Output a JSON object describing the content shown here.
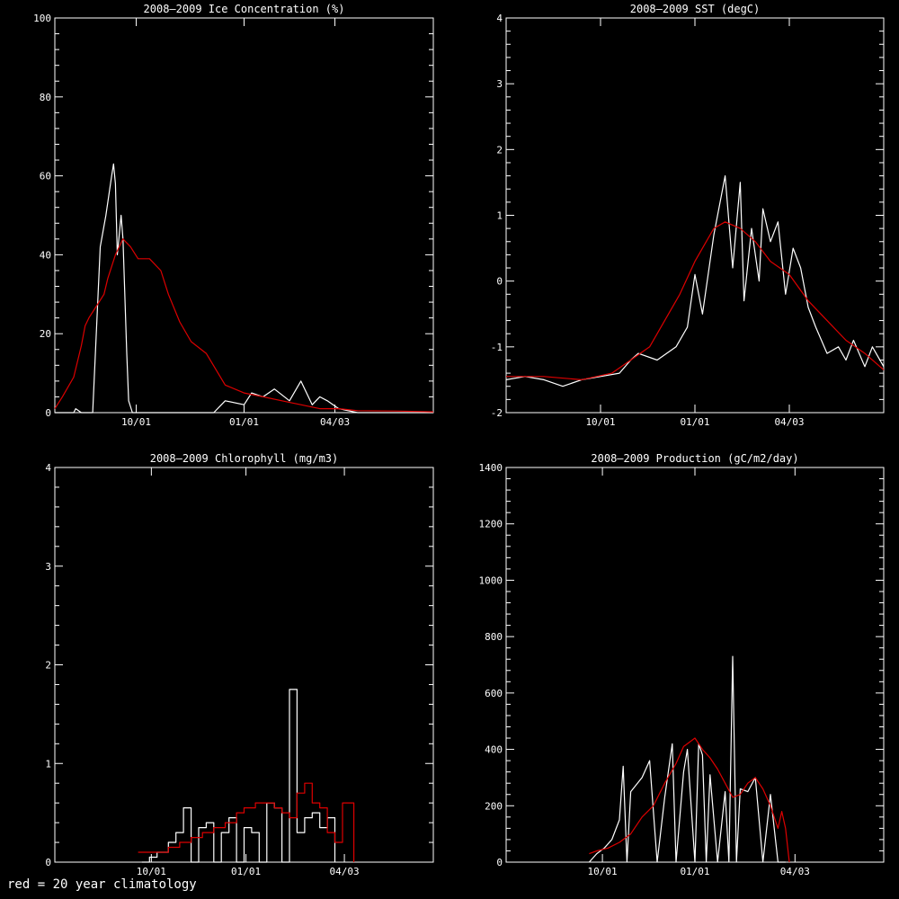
{
  "footer_note": "red = 20 year climatology",
  "colors": {
    "observed": "#ffffff",
    "climatology": "#dd0000",
    "axes": "#ffffff",
    "background": "#000000"
  },
  "chart_data": [
    {
      "type": "line",
      "title": "2008–2009 Ice Concentration (%)",
      "ylim": [
        0,
        100
      ],
      "yticks": [
        0,
        20,
        40,
        60,
        80,
        100
      ],
      "xlim": [
        0,
        1
      ],
      "xticks": [
        {
          "x": 0.215,
          "label": "10/01"
        },
        {
          "x": 0.5,
          "label": "01/01"
        },
        {
          "x": 0.74,
          "label": "04/03"
        }
      ],
      "series": [
        {
          "color": "observed",
          "step": false,
          "x": [
            0.0,
            0.05,
            0.055,
            0.07,
            0.085,
            0.1,
            0.12,
            0.135,
            0.15,
            0.155,
            0.16,
            0.165,
            0.175,
            0.18,
            0.19,
            0.195,
            0.205,
            0.22,
            0.3,
            0.36,
            0.42,
            0.45,
            0.5,
            0.52,
            0.55,
            0.58,
            0.62,
            0.65,
            0.68,
            0.7,
            0.72,
            0.75,
            0.8,
            1.0
          ],
          "y": [
            0,
            0,
            1,
            0,
            0,
            0,
            42,
            50,
            60,
            63,
            58,
            40,
            50,
            44,
            15,
            3,
            0,
            0,
            0,
            0,
            0,
            3,
            2,
            5,
            4,
            6,
            3,
            8,
            2,
            4,
            3,
            1,
            0,
            0
          ]
        },
        {
          "color": "climatology",
          "step": false,
          "x": [
            0.0,
            0.02,
            0.05,
            0.07,
            0.08,
            0.09,
            0.11,
            0.13,
            0.14,
            0.16,
            0.18,
            0.2,
            0.22,
            0.25,
            0.28,
            0.3,
            0.33,
            0.36,
            0.4,
            0.45,
            0.5,
            0.55,
            0.6,
            0.65,
            0.7,
            0.75,
            0.8,
            0.9,
            1.0
          ],
          "y": [
            1,
            4,
            9,
            17,
            22,
            24,
            27,
            30,
            34,
            40,
            44,
            42,
            39,
            39,
            36,
            30,
            23,
            18,
            15,
            7,
            5,
            4,
            3,
            2,
            1,
            1,
            0.5,
            0.4,
            0.2
          ]
        }
      ]
    },
    {
      "type": "line",
      "title": "2008–2009 SST (degC)",
      "ylim": [
        -2,
        4
      ],
      "yticks": [
        -2,
        -1,
        0,
        1,
        2,
        3,
        4
      ],
      "xlim": [
        0,
        1
      ],
      "xticks": [
        {
          "x": 0.25,
          "label": "10/01"
        },
        {
          "x": 0.5,
          "label": "01/01"
        },
        {
          "x": 0.75,
          "label": "04/03"
        }
      ],
      "series": [
        {
          "color": "observed",
          "step": false,
          "x": [
            0.0,
            0.05,
            0.1,
            0.15,
            0.2,
            0.25,
            0.3,
            0.33,
            0.35,
            0.4,
            0.45,
            0.48,
            0.5,
            0.52,
            0.55,
            0.58,
            0.6,
            0.62,
            0.63,
            0.65,
            0.67,
            0.68,
            0.7,
            0.72,
            0.74,
            0.76,
            0.78,
            0.8,
            0.82,
            0.85,
            0.88,
            0.9,
            0.92,
            0.95,
            0.97,
            1.0
          ],
          "y": [
            -1.5,
            -1.45,
            -1.5,
            -1.6,
            -1.5,
            -1.45,
            -1.4,
            -1.2,
            -1.1,
            -1.2,
            -1.0,
            -0.7,
            0.1,
            -0.5,
            0.7,
            1.6,
            0.2,
            1.5,
            -0.3,
            0.8,
            0.0,
            1.1,
            0.6,
            0.9,
            -0.2,
            0.5,
            0.2,
            -0.4,
            -0.7,
            -1.1,
            -1.0,
            -1.2,
            -0.9,
            -1.3,
            -1.0,
            -1.3
          ]
        },
        {
          "color": "climatology",
          "step": false,
          "x": [
            0.0,
            0.1,
            0.2,
            0.28,
            0.33,
            0.38,
            0.42,
            0.46,
            0.5,
            0.55,
            0.58,
            0.62,
            0.66,
            0.7,
            0.75,
            0.8,
            0.85,
            0.9,
            0.95,
            1.0
          ],
          "y": [
            -1.45,
            -1.45,
            -1.5,
            -1.4,
            -1.2,
            -1.0,
            -0.6,
            -0.2,
            0.3,
            0.8,
            0.9,
            0.8,
            0.6,
            0.3,
            0.1,
            -0.3,
            -0.6,
            -0.9,
            -1.1,
            -1.35
          ]
        }
      ]
    },
    {
      "type": "line",
      "title": "2008–2009 Chlorophyll (mg/m3)",
      "ylim": [
        0,
        4
      ],
      "yticks": [
        0,
        1,
        2,
        3,
        4
      ],
      "xlim": [
        0,
        1
      ],
      "xticks": [
        {
          "x": 0.255,
          "label": "10/01"
        },
        {
          "x": 0.505,
          "label": "01/01"
        },
        {
          "x": 0.765,
          "label": "04/03"
        }
      ],
      "series": [
        {
          "color": "observed",
          "step": true,
          "x": [
            0.23,
            0.25,
            0.27,
            0.3,
            0.32,
            0.34,
            0.36,
            0.38,
            0.4,
            0.42,
            0.44,
            0.46,
            0.48,
            0.5,
            0.52,
            0.54,
            0.56,
            0.58,
            0.6,
            0.62,
            0.64,
            0.66,
            0.68,
            0.7,
            0.72,
            0.74
          ],
          "y": [
            0,
            0.05,
            0.1,
            0.2,
            0.3,
            0.55,
            0,
            0.35,
            0.4,
            0,
            0.3,
            0.45,
            0,
            0.35,
            0.3,
            0,
            0.6,
            0.55,
            0,
            1.75,
            0.3,
            0.45,
            0.5,
            0.35,
            0.45,
            0
          ]
        },
        {
          "color": "climatology",
          "step": true,
          "x": [
            0.22,
            0.24,
            0.27,
            0.3,
            0.33,
            0.36,
            0.39,
            0.42,
            0.45,
            0.48,
            0.5,
            0.53,
            0.56,
            0.58,
            0.6,
            0.62,
            0.64,
            0.66,
            0.68,
            0.7,
            0.72,
            0.74,
            0.76,
            0.78,
            0.79
          ],
          "y": [
            0.1,
            0.1,
            0.1,
            0.15,
            0.2,
            0.25,
            0.3,
            0.35,
            0.4,
            0.5,
            0.55,
            0.6,
            0.6,
            0.55,
            0.5,
            0.45,
            0.7,
            0.8,
            0.6,
            0.55,
            0.3,
            0.2,
            0.6,
            0.6,
            0
          ]
        }
      ]
    },
    {
      "type": "line",
      "title": "2008–2009 Production (gC/m2/day)",
      "ylim": [
        0,
        1400
      ],
      "yticks": [
        0,
        200,
        400,
        600,
        800,
        1000,
        1200,
        1400
      ],
      "xlim": [
        0,
        1
      ],
      "xticks": [
        {
          "x": 0.255,
          "label": "10/01"
        },
        {
          "x": 0.5,
          "label": "01/01"
        },
        {
          "x": 0.765,
          "label": "04/03"
        }
      ],
      "series": [
        {
          "color": "observed",
          "step": false,
          "x": [
            0.22,
            0.24,
            0.26,
            0.28,
            0.3,
            0.31,
            0.32,
            0.33,
            0.36,
            0.38,
            0.4,
            0.42,
            0.44,
            0.45,
            0.47,
            0.48,
            0.5,
            0.51,
            0.52,
            0.53,
            0.54,
            0.56,
            0.58,
            0.59,
            0.6,
            0.61,
            0.62,
            0.64,
            0.66,
            0.68,
            0.7,
            0.72,
            0.74
          ],
          "y": [
            0,
            30,
            50,
            80,
            150,
            340,
            0,
            250,
            300,
            360,
            0,
            230,
            420,
            0,
            320,
            400,
            0,
            420,
            380,
            0,
            310,
            0,
            250,
            0,
            730,
            0,
            260,
            250,
            300,
            0,
            240,
            0,
            0
          ]
        },
        {
          "color": "climatology",
          "step": false,
          "x": [
            0.22,
            0.24,
            0.27,
            0.3,
            0.33,
            0.36,
            0.39,
            0.42,
            0.45,
            0.47,
            0.5,
            0.52,
            0.54,
            0.56,
            0.58,
            0.6,
            0.62,
            0.64,
            0.66,
            0.68,
            0.7,
            0.72,
            0.73,
            0.74,
            0.75
          ],
          "y": [
            30,
            40,
            50,
            70,
            100,
            160,
            200,
            280,
            350,
            410,
            440,
            400,
            370,
            330,
            280,
            230,
            240,
            280,
            300,
            260,
            200,
            120,
            180,
            120,
            0
          ]
        }
      ]
    }
  ]
}
